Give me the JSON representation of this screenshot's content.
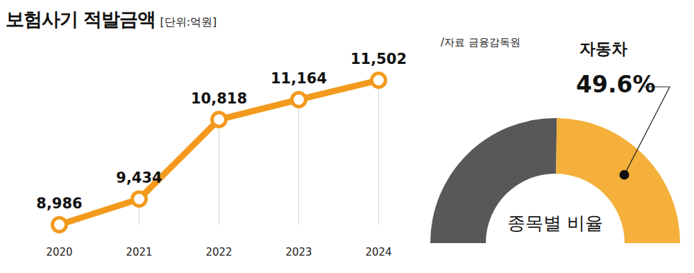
{
  "chart_data": [
    {
      "type": "line",
      "title": "보험사기 적발금액",
      "subtitle": "[단위:억원]",
      "categories": [
        "2020",
        "2021",
        "2022",
        "2023",
        "2024"
      ],
      "values": [
        8986,
        9434,
        10818,
        11164,
        11502
      ],
      "value_labels": [
        "8,986",
        "9,434",
        "10,818",
        "11,164",
        "11,502"
      ],
      "data_labels": true,
      "tick_labels": "x",
      "color": "#f39a1e",
      "marker": "circle"
    },
    {
      "type": "pie",
      "title": "종목별 비율",
      "source": "/자료 금융감독원",
      "categories": [
        null,
        "자동차"
      ],
      "values": [
        50.4,
        49.6
      ],
      "value_labels": [
        null,
        "49.6%"
      ],
      "data_labels": true,
      "colors": [
        "#58585a",
        "#f4b03a"
      ]
    }
  ]
}
